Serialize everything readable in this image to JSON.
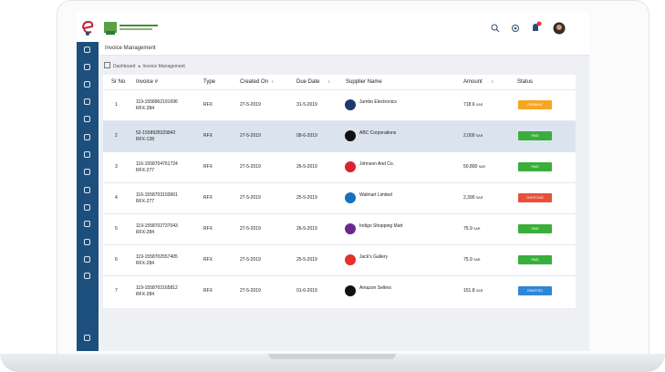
{
  "header": {
    "title": "Invoice Management"
  },
  "breadcrumb": {
    "home": "Dashboard",
    "current": "Invoice Management"
  },
  "table": {
    "columns": [
      "Sr No",
      "Invoice #",
      "Type",
      "Created On",
      "Due Date",
      "Supplier Name",
      "Amount",
      "Status"
    ],
    "rows": [
      {
        "sr": "1",
        "invoice": "119-1558962191696",
        "ref": "RFX-284",
        "type": "RFX",
        "created": "27-5-2019",
        "due": "31-5-2019",
        "supplier": "Jumbo Electronics",
        "amount": "718.6",
        "currency": "SAR",
        "status": "PENDING",
        "status_color": "#f5a623"
      },
      {
        "sr": "2",
        "invoice": "52-1558928329842",
        "ref": "RFX-128",
        "type": "RFX",
        "created": "27-5-2019",
        "due": "08-6-2019",
        "supplier": "ABC Corporations",
        "amount": "2,000",
        "currency": "SAR",
        "status": "PAID",
        "status_color": "#3aae3a"
      },
      {
        "sr": "3",
        "invoice": "116-1558704761724",
        "ref": "RFX-277",
        "type": "RFX",
        "created": "27-5-2019",
        "due": "26-5-2019",
        "supplier": "Johnson And Co.",
        "amount": "50,800",
        "currency": "SAR",
        "status": "PAID",
        "status_color": "#3aae3a"
      },
      {
        "sr": "4",
        "invoice": "116-1558703103661",
        "ref": "RFX-277",
        "type": "RFX",
        "created": "27-5-2019",
        "due": "25-5-2019",
        "supplier": "Walmart Limited",
        "amount": "2,390",
        "currency": "SAR",
        "status": "OVER DUE",
        "status_color": "#e8503a"
      },
      {
        "sr": "5",
        "invoice": "119-1558702737043",
        "ref": "RFX-284",
        "type": "RFX",
        "created": "27-5-2019",
        "due": "26-5-2019",
        "supplier": "Indigo Shopping Mart",
        "amount": "75.9",
        "currency": "SAR",
        "status": "PAID",
        "status_color": "#3aae3a"
      },
      {
        "sr": "6",
        "invoice": "119-1558702557405",
        "ref": "RFX-284",
        "type": "RFX",
        "created": "27-5-2019",
        "due": "25-5-2019",
        "supplier": "Jack's Gallery",
        "amount": "75.9",
        "currency": "SAR",
        "status": "PAID",
        "status_color": "#3aae3a"
      },
      {
        "sr": "7",
        "invoice": "119-1558702165812",
        "ref": "RFX-284",
        "type": "RFX",
        "created": "27-5-2019",
        "due": "01-6-2019",
        "supplier": "Amazon Sellers",
        "amount": "151.8",
        "currency": "SAR",
        "status": "DRAFTED",
        "status_color": "#2f86d6"
      }
    ]
  }
}
